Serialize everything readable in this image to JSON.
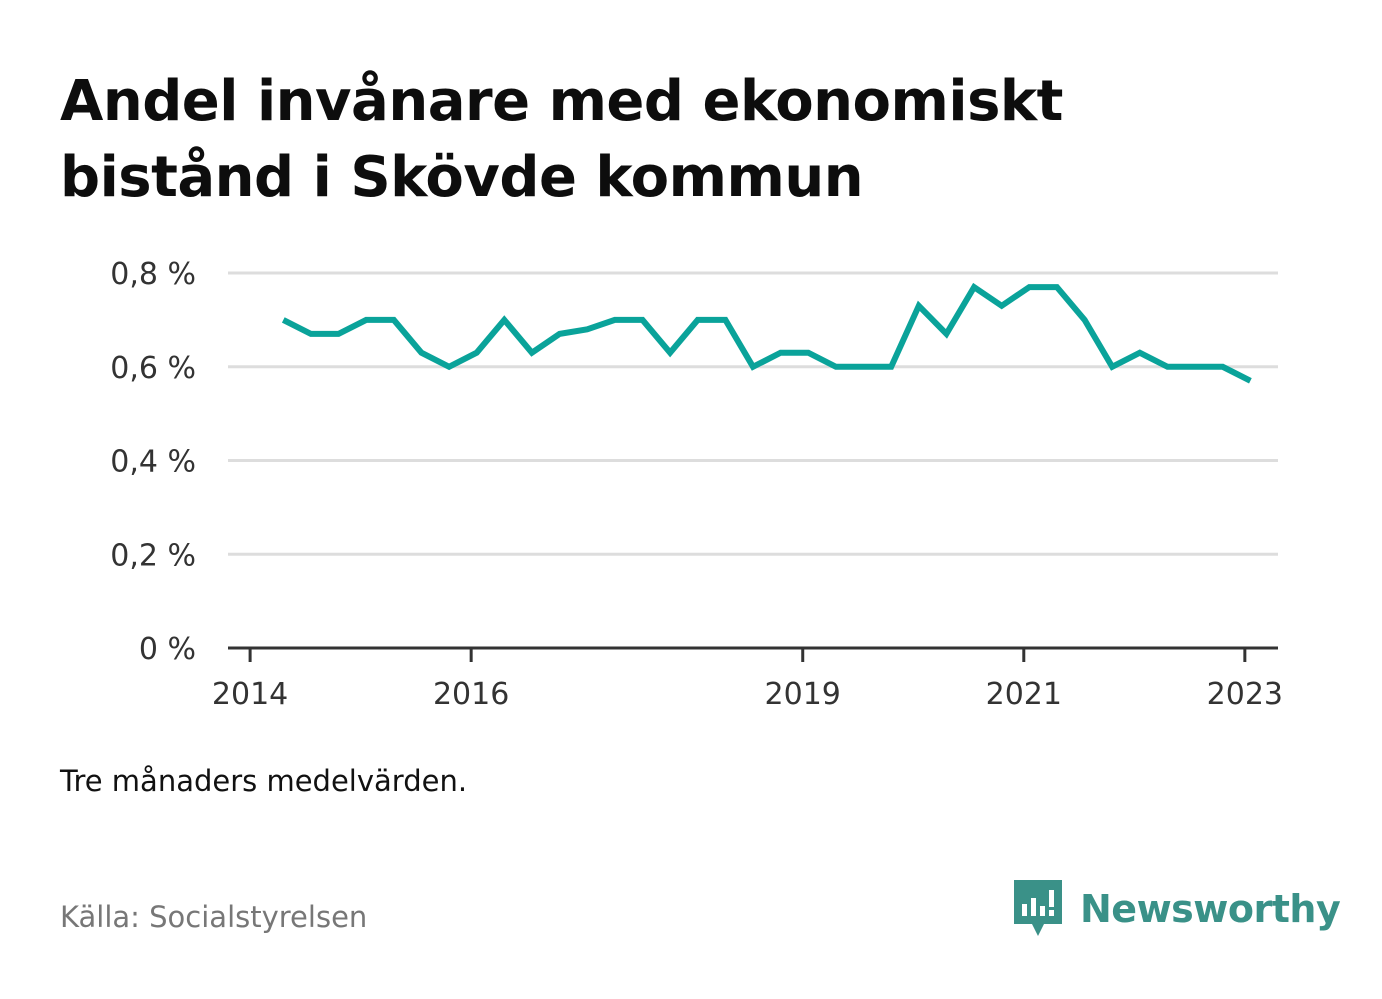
{
  "title": "Andel invånare med ekonomiskt bistånd i Skövde kommun",
  "note": "Tre månaders medelvärden.",
  "source": "Källa: Socialstyrelsen",
  "brand": {
    "name": "Newsworthy",
    "icon": "newsworthy-logo-icon",
    "color": "#3a9188"
  },
  "colors": {
    "line": "#0aa39a",
    "grid": "#dddddd",
    "axis": "#333333"
  },
  "chart_data": {
    "type": "line",
    "title": "Andel invånare med ekonomiskt bistånd i Skövde kommun",
    "xlabel": "",
    "ylabel": "",
    "ylim": [
      0,
      0.8
    ],
    "yticks": [
      0,
      0.2,
      0.4,
      0.6,
      0.8
    ],
    "ytick_labels": [
      "0 %",
      "0,2 %",
      "0,4 %",
      "0,6 %",
      "0,8 %"
    ],
    "xticks": [
      2014,
      2016,
      2019,
      2021,
      2023
    ],
    "xtick_labels": [
      "2014",
      "2016",
      "2019",
      "2021",
      "2023"
    ],
    "grid": true,
    "series": [
      {
        "x": [
          2014.3,
          2014.55,
          2014.8,
          2015.05,
          2015.3,
          2015.55,
          2015.8,
          2016.05,
          2016.3,
          2016.55,
          2016.8,
          2017.05,
          2017.3,
          2017.55,
          2017.8,
          2018.05,
          2018.3,
          2018.55,
          2018.8,
          2019.05,
          2019.3,
          2019.55,
          2019.8,
          2020.05,
          2020.3,
          2020.55,
          2020.8,
          2021.05,
          2021.3,
          2021.55,
          2021.8,
          2022.05,
          2022.3,
          2022.55,
          2022.8,
          2023.05
        ],
        "values": [
          0.7,
          0.67,
          0.67,
          0.7,
          0.7,
          0.63,
          0.6,
          0.63,
          0.7,
          0.63,
          0.67,
          0.68,
          0.7,
          0.7,
          0.63,
          0.7,
          0.7,
          0.6,
          0.63,
          0.63,
          0.6,
          0.6,
          0.6,
          0.73,
          0.67,
          0.77,
          0.73,
          0.77,
          0.77,
          0.7,
          0.6,
          0.63,
          0.6,
          0.6,
          0.6,
          0.57
        ]
      }
    ]
  }
}
